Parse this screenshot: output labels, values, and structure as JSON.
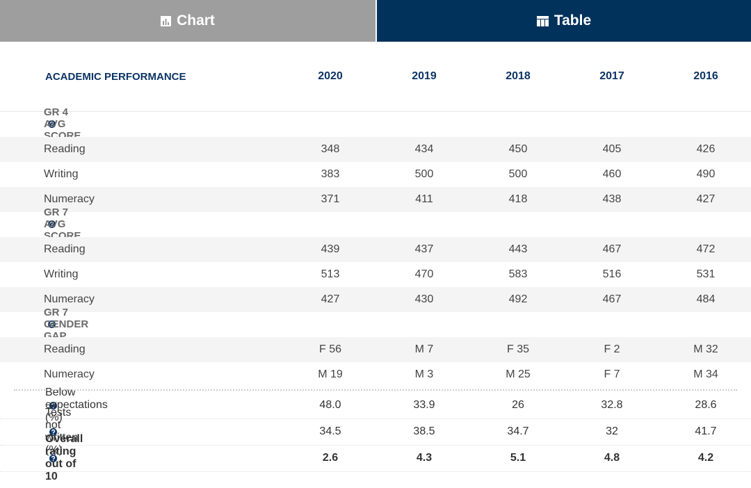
{
  "tabs": [
    {
      "label": "Chart",
      "active": false
    },
    {
      "label": "Table",
      "active": true
    }
  ],
  "table": {
    "header": "ACADEMIC PERFORMANCE",
    "columns": [
      "2020",
      "2019",
      "2018",
      "2017",
      "2016"
    ],
    "sections": [
      {
        "title": "GR 4 AVG SCORE",
        "rows": [
          {
            "label": "Reading",
            "values": [
              "348",
              "434",
              "450",
              "405",
              "426"
            ]
          },
          {
            "label": "Writing",
            "values": [
              "383",
              "500",
              "500",
              "460",
              "490"
            ]
          },
          {
            "label": "Numeracy",
            "values": [
              "371",
              "411",
              "418",
              "438",
              "427"
            ]
          }
        ]
      },
      {
        "title": "GR 7 AVG SCORE",
        "rows": [
          {
            "label": "Reading",
            "values": [
              "439",
              "437",
              "443",
              "467",
              "472"
            ]
          },
          {
            "label": "Writing",
            "values": [
              "513",
              "470",
              "583",
              "516",
              "531"
            ]
          },
          {
            "label": "Numeracy",
            "values": [
              "427",
              "430",
              "492",
              "467",
              "484"
            ]
          }
        ]
      },
      {
        "title": "GR 7 GENDER GAP",
        "rows": [
          {
            "label": "Reading",
            "values": [
              "F 56",
              "M 7",
              "F 35",
              "F 2",
              "M 32"
            ]
          },
          {
            "label": "Numeracy",
            "values": [
              "M 19",
              "M 3",
              "M 25",
              "F 7",
              "M 34"
            ]
          }
        ]
      }
    ],
    "summary": [
      {
        "label": "Below expectations (%)",
        "values": [
          "48.0",
          "33.9",
          "26",
          "32.8",
          "28.6"
        ],
        "bold": false
      },
      {
        "label": "Tests not written (%)",
        "values": [
          "34.5",
          "38.5",
          "34.7",
          "32",
          "41.7"
        ],
        "bold": false
      },
      {
        "label": "Overall rating out of 10",
        "values": [
          "2.6",
          "4.3",
          "5.1",
          "4.8",
          "4.2"
        ],
        "bold": true
      }
    ]
  }
}
